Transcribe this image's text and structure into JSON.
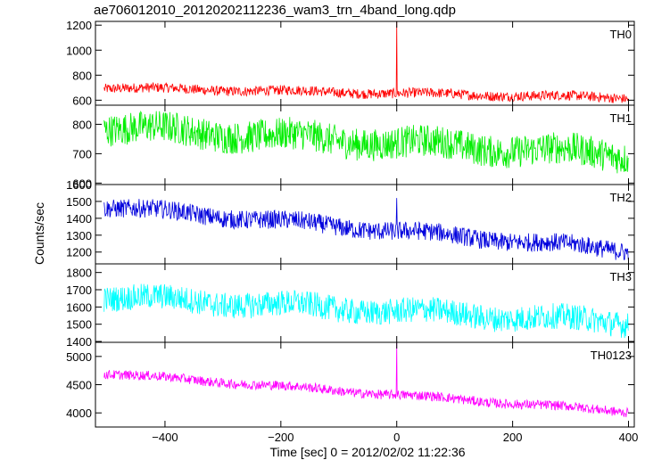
{
  "chart_data": {
    "type": "line",
    "title": "ae706012010_20120202112236_wam3_trn_4band_long.qdp",
    "xlabel": "Time [sec] 0 = 2012/02/02 11:22:36",
    "ylabel": "Counts/sec",
    "xlim": [
      -520,
      410
    ],
    "x_ticks": [
      -400,
      -200,
      0,
      200,
      400
    ],
    "x_tick_labels": [
      "−400",
      "−200",
      "0",
      "200",
      "400"
    ],
    "x_range_data": [
      -505,
      400
    ],
    "panels": [
      {
        "name": "TH0",
        "color": "#ff0000",
        "ylim": [
          560,
          1230
        ],
        "y_ticks": [
          600,
          800,
          1000,
          1200
        ],
        "trend": [
          [
            -505,
            700
          ],
          [
            400,
            620
          ]
        ],
        "noise_amplitude": 40,
        "spike": {
          "x": 0,
          "y": 1230
        }
      },
      {
        "name": "TH1",
        "color": "#00ee00",
        "ylim": [
          595,
          865
        ],
        "y_ticks": [
          600,
          700,
          800
        ],
        "trend": [
          [
            -505,
            790
          ],
          [
            400,
            695
          ]
        ],
        "noise_amplitude": 55,
        "spike": null
      },
      {
        "name": "TH2",
        "color": "#0000dd",
        "ylim": [
          1130,
          1600
        ],
        "y_ticks": [
          1200,
          1300,
          1400,
          1500,
          1600
        ],
        "trend": [
          [
            -505,
            1470
          ],
          [
            400,
            1210
          ]
        ],
        "noise_amplitude": 55,
        "spike": {
          "x": 0,
          "y": 1520
        }
      },
      {
        "name": "TH3",
        "color": "#00ffff",
        "ylim": [
          1395,
          1850
        ],
        "y_ticks": [
          1400,
          1500,
          1600,
          1700,
          1800
        ],
        "trend": [
          [
            -505,
            1660
          ],
          [
            400,
            1510
          ]
        ],
        "noise_amplitude": 75,
        "spike": null
      },
      {
        "name": "TH0123",
        "color": "#ff00ff",
        "ylim": [
          3750,
          5250
        ],
        "y_ticks": [
          4000,
          4500,
          5000
        ],
        "trend": [
          [
            -505,
            4700
          ],
          [
            400,
            4020
          ]
        ],
        "noise_amplitude": 85,
        "spike": {
          "x": 0,
          "y": 5250
        }
      }
    ]
  }
}
